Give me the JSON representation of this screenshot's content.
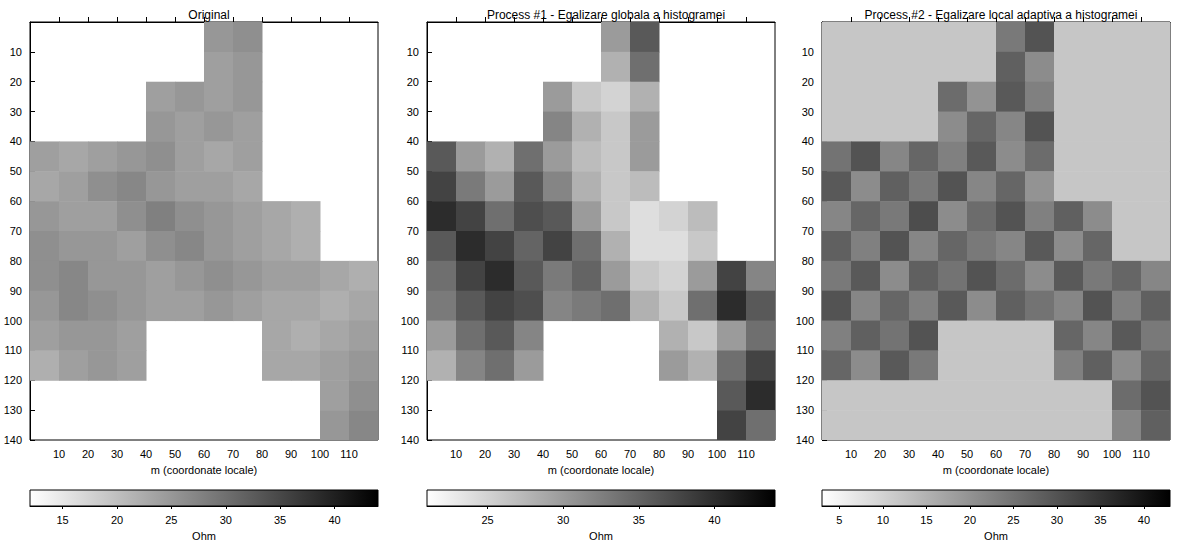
{
  "chart_data": [
    {
      "type": "heatmap",
      "title": "Original",
      "xlabel": "m (coordonate locale)",
      "xlim": [
        0,
        120
      ],
      "xticks": [
        10,
        20,
        30,
        40,
        50,
        60,
        70,
        80,
        90,
        100,
        110
      ],
      "ylim": [
        0,
        140
      ],
      "yticks": [
        10,
        20,
        30,
        40,
        50,
        60,
        70,
        80,
        90,
        100,
        110,
        120,
        130,
        140
      ],
      "grid": false,
      "x_edges": [
        0,
        10,
        20,
        30,
        40,
        50,
        60,
        70,
        80,
        90,
        100,
        110,
        120
      ],
      "y_edges": [
        0,
        10,
        20,
        30,
        40,
        50,
        60,
        70,
        80,
        90,
        100,
        110,
        120,
        130,
        140
      ],
      "cells": [
        [
          null,
          null,
          null,
          null,
          null,
          null,
          25,
          26,
          null,
          null,
          null,
          null
        ],
        [
          null,
          null,
          null,
          null,
          null,
          null,
          24,
          25,
          null,
          null,
          null,
          null
        ],
        [
          null,
          null,
          null,
          null,
          24,
          25,
          24,
          25,
          null,
          null,
          null,
          null
        ],
        [
          null,
          null,
          null,
          null,
          25,
          24,
          25,
          24,
          null,
          null,
          null,
          null
        ],
        [
          24,
          23,
          24,
          25,
          26,
          24,
          23,
          24,
          null,
          null,
          null,
          null
        ],
        [
          23,
          24,
          26,
          27,
          25,
          24,
          24,
          23,
          null,
          null,
          null,
          null
        ],
        [
          25,
          24,
          24,
          26,
          28,
          26,
          25,
          24,
          23,
          22,
          null,
          null
        ],
        [
          26,
          25,
          25,
          24,
          26,
          27,
          25,
          24,
          23,
          22,
          null,
          null
        ],
        [
          26,
          27,
          25,
          25,
          24,
          25,
          26,
          25,
          24,
          24,
          23,
          22
        ],
        [
          25,
          27,
          26,
          25,
          24,
          24,
          25,
          24,
          23,
          23,
          22,
          23
        ],
        [
          24,
          25,
          25,
          24,
          null,
          null,
          null,
          null,
          23,
          22,
          23,
          24
        ],
        [
          22,
          24,
          25,
          24,
          null,
          null,
          null,
          null,
          23,
          23,
          24,
          25
        ],
        [
          null,
          null,
          null,
          null,
          null,
          null,
          null,
          null,
          null,
          null,
          24,
          26
        ],
        [
          null,
          null,
          null,
          null,
          null,
          null,
          null,
          null,
          null,
          null,
          25,
          27
        ]
      ],
      "colorbar": {
        "range": [
          12,
          44
        ],
        "ticks": [
          15,
          20,
          25,
          30,
          35,
          40
        ],
        "label": "Ohm"
      }
    },
    {
      "type": "heatmap",
      "title": "Process #1 - Egalizare globala a histogramei",
      "xlabel": "m (coordonate locale)",
      "xlim": [
        0,
        120
      ],
      "xticks": [
        10,
        20,
        30,
        40,
        50,
        60,
        70,
        80,
        90,
        100,
        110
      ],
      "ylim": [
        0,
        140
      ],
      "yticks": [
        10,
        20,
        30,
        40,
        50,
        60,
        70,
        80,
        90,
        100,
        110,
        120,
        130,
        140
      ],
      "grid": false,
      "x_edges": [
        0,
        10,
        20,
        30,
        40,
        50,
        60,
        70,
        80,
        90,
        100,
        110,
        120
      ],
      "y_edges": [
        0,
        10,
        20,
        30,
        40,
        50,
        60,
        70,
        80,
        90,
        100,
        110,
        120,
        130,
        140
      ],
      "cells": [
        [
          null,
          null,
          null,
          null,
          null,
          null,
          30,
          36,
          null,
          null,
          null,
          null
        ],
        [
          null,
          null,
          null,
          null,
          null,
          null,
          28,
          34,
          null,
          null,
          null,
          null
        ],
        [
          null,
          null,
          null,
          null,
          30,
          26,
          25,
          28,
          null,
          null,
          null,
          null
        ],
        [
          null,
          null,
          null,
          null,
          32,
          28,
          26,
          30,
          null,
          null,
          null,
          null
        ],
        [
          36,
          30,
          28,
          34,
          30,
          27,
          26,
          30,
          null,
          null,
          null,
          null
        ],
        [
          38,
          33,
          30,
          36,
          32,
          28,
          26,
          27,
          null,
          null,
          null,
          null
        ],
        [
          40,
          38,
          34,
          37,
          36,
          30,
          26,
          24,
          25,
          27,
          null,
          null
        ],
        [
          36,
          40,
          38,
          35,
          38,
          34,
          28,
          24,
          24,
          26,
          null,
          null
        ],
        [
          34,
          38,
          40,
          36,
          33,
          35,
          30,
          26,
          25,
          30,
          38,
          32
        ],
        [
          33,
          36,
          38,
          37,
          32,
          33,
          34,
          28,
          26,
          34,
          40,
          36
        ],
        [
          30,
          34,
          36,
          32,
          null,
          null,
          null,
          null,
          28,
          26,
          30,
          34
        ],
        [
          28,
          32,
          34,
          30,
          null,
          null,
          null,
          null,
          30,
          28,
          34,
          38
        ],
        [
          null,
          null,
          null,
          null,
          null,
          null,
          null,
          null,
          null,
          null,
          36,
          40
        ],
        [
          null,
          null,
          null,
          null,
          null,
          null,
          null,
          null,
          null,
          null,
          38,
          34
        ]
      ],
      "colorbar": {
        "range": [
          21,
          44
        ],
        "ticks": [
          25,
          30,
          35,
          40
        ],
        "label": "Ohm"
      }
    },
    {
      "type": "heatmap",
      "title": "Process #2 - Egalizare local adaptiva a histogramei",
      "xlabel": "m (coordonate locale)",
      "xlim": [
        0,
        120
      ],
      "xticks": [
        10,
        20,
        30,
        40,
        50,
        60,
        70,
        80,
        90,
        100,
        110
      ],
      "ylim": [
        0,
        140
      ],
      "yticks": [
        10,
        20,
        30,
        40,
        50,
        60,
        70,
        80,
        90,
        100,
        110,
        120,
        130,
        140
      ],
      "grid": false,
      "x_edges": [
        0,
        10,
        20,
        30,
        40,
        50,
        60,
        70,
        80,
        90,
        100,
        110,
        120
      ],
      "y_edges": [
        0,
        10,
        20,
        30,
        40,
        50,
        60,
        70,
        80,
        90,
        100,
        110,
        120,
        130,
        140
      ],
      "cells": [
        [
          12,
          12,
          12,
          12,
          12,
          12,
          24,
          30,
          12,
          12,
          12,
          12
        ],
        [
          12,
          12,
          12,
          12,
          12,
          12,
          28,
          21,
          12,
          12,
          12,
          12
        ],
        [
          12,
          12,
          12,
          12,
          26,
          20,
          29,
          23,
          12,
          12,
          12,
          12
        ],
        [
          12,
          12,
          12,
          12,
          21,
          27,
          22,
          30,
          12,
          12,
          12,
          12
        ],
        [
          25,
          30,
          22,
          27,
          23,
          29,
          21,
          26,
          12,
          12,
          12,
          12
        ],
        [
          29,
          21,
          28,
          24,
          30,
          22,
          27,
          20,
          12,
          12,
          12,
          12
        ],
        [
          22,
          27,
          24,
          31,
          21,
          26,
          30,
          23,
          28,
          21,
          12,
          12
        ],
        [
          28,
          23,
          30,
          22,
          27,
          24,
          22,
          29,
          21,
          27,
          12,
          12
        ],
        [
          24,
          29,
          21,
          28,
          25,
          30,
          26,
          21,
          29,
          24,
          27,
          22
        ],
        [
          30,
          22,
          27,
          23,
          29,
          21,
          28,
          25,
          22,
          30,
          23,
          28
        ],
        [
          23,
          28,
          25,
          30,
          12,
          12,
          12,
          12,
          27,
          22,
          29,
          24
        ],
        [
          27,
          21,
          29,
          24,
          12,
          12,
          12,
          12,
          23,
          28,
          21,
          27
        ],
        [
          12,
          12,
          12,
          12,
          12,
          12,
          12,
          12,
          12,
          12,
          26,
          30
        ],
        [
          12,
          12,
          12,
          12,
          12,
          12,
          12,
          12,
          12,
          12,
          22,
          28
        ]
      ],
      "colorbar": {
        "range": [
          3,
          43
        ],
        "ticks": [
          5,
          10,
          15,
          20,
          25,
          30,
          35,
          40
        ],
        "label": "Ohm"
      }
    }
  ]
}
